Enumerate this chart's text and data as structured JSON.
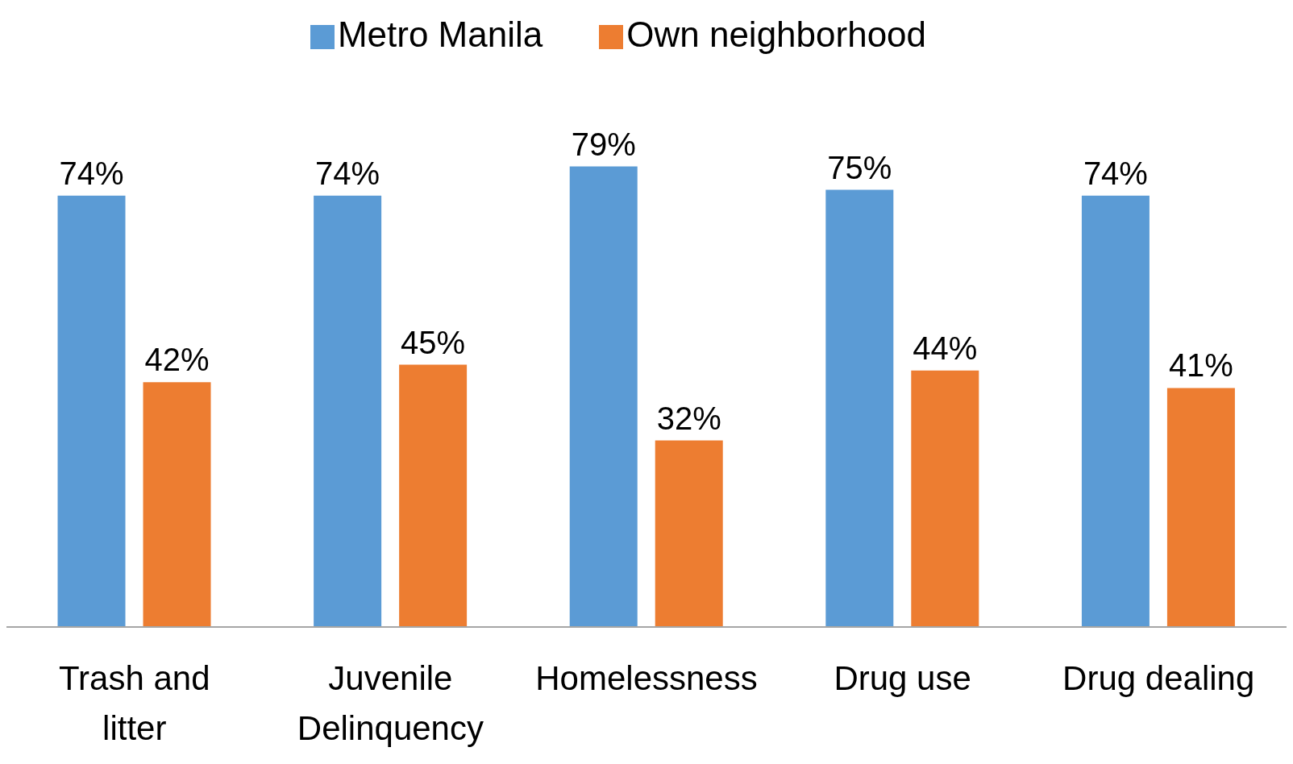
{
  "chart_data": {
    "type": "bar",
    "categories": [
      "Trash and litter",
      "Juvenile Delinquency",
      "Homelessness",
      "Drug use",
      "Drug dealing"
    ],
    "series": [
      {
        "name": "Metro Manila",
        "color": "#5b9bd5",
        "values": [
          74,
          74,
          79,
          75,
          74
        ],
        "value_labels": [
          "74%",
          "74%",
          "79%",
          "75%",
          "74%"
        ]
      },
      {
        "name": "Own neighborhood",
        "color": "#ed7d31",
        "values": [
          42,
          45,
          32,
          44,
          41
        ],
        "value_labels": [
          "42%",
          "45%",
          "32%",
          "44%",
          "41%"
        ]
      }
    ],
    "legend": "top",
    "grid": false
  }
}
